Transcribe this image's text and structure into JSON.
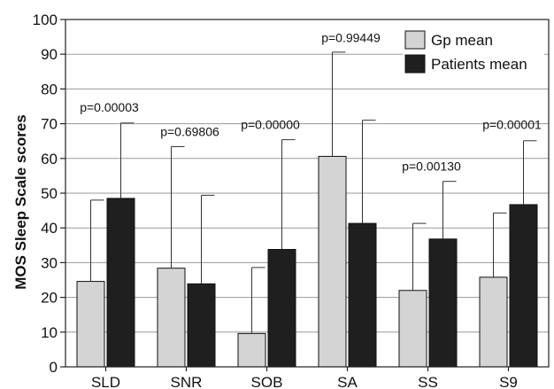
{
  "chart_data": {
    "type": "bar",
    "title": "",
    "xlabel": "",
    "ylabel": "MOS Sleep Scale scores",
    "ylim": [
      0,
      100
    ],
    "yticks": [
      0,
      10,
      20,
      30,
      40,
      50,
      60,
      70,
      80,
      90,
      100
    ],
    "ytick_labels": [
      "0",
      "10",
      "20",
      "30",
      "40",
      "50",
      "60",
      "70",
      "80",
      "90",
      "100"
    ],
    "grid": true,
    "legend_position": "top-right",
    "categories": [
      "SLD",
      "SNR",
      "SOB",
      "SA",
      "SS",
      "S9"
    ],
    "series": [
      {
        "name": "Gp mean",
        "color": "#d4d4d4",
        "values": [
          24.6,
          28.4,
          9.6,
          60.6,
          22.0,
          25.8
        ],
        "error_upper": [
          48.0,
          63.4,
          28.6,
          90.6,
          41.3,
          44.3
        ]
      },
      {
        "name": "Patients mean",
        "color": "#1f1f1f",
        "values": [
          48.5,
          23.9,
          33.8,
          41.3,
          36.8,
          46.7
        ],
        "error_upper": [
          70.2,
          49.4,
          65.4,
          71.0,
          53.4,
          65.1
        ]
      }
    ],
    "annotations": [
      {
        "category": "SLD",
        "text": "p=0.00003",
        "y": 73.5
      },
      {
        "category": "SNR",
        "text": "p=0.69806",
        "y": 66.5
      },
      {
        "category": "SOB",
        "text": "p=0.00000",
        "y": 68.5
      },
      {
        "category": "SA",
        "text": "p=0.99449",
        "y": 93.5
      },
      {
        "category": "SS",
        "text": "p=0.00130",
        "y": 56.5
      },
      {
        "category": "S9",
        "text": "p=0.00001",
        "y": 68.5
      }
    ]
  }
}
